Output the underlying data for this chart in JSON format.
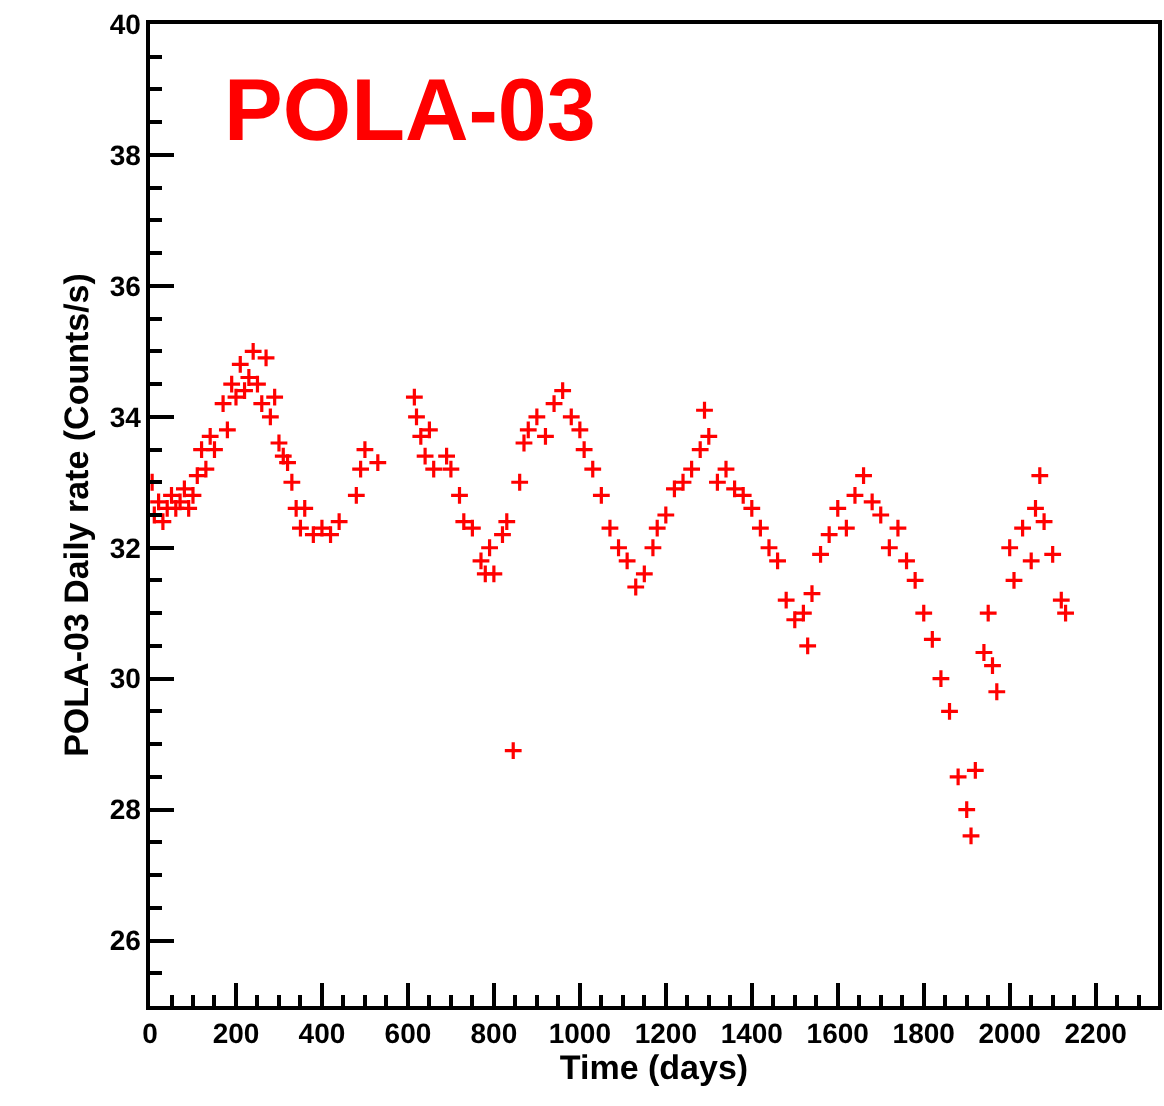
{
  "chart_data": {
    "type": "scatter",
    "xlabel": "Time (days)",
    "ylabel": "POLA-03 Daily rate (Counts/s)",
    "annotations": [
      "POLA-03"
    ],
    "marker": "cross",
    "grid": false,
    "xlim": [
      0,
      2345
    ],
    "xticks": [
      0,
      200,
      400,
      600,
      800,
      1000,
      1200,
      1400,
      1600,
      1800,
      2000,
      2200
    ],
    "ylim": [
      25,
      40
    ],
    "yticks": [
      26,
      28,
      30,
      32,
      34,
      36,
      38,
      40
    ],
    "series": [
      {
        "color": "#ff0000",
        "x": [
          5,
          10,
          20,
          30,
          40,
          50,
          60,
          70,
          80,
          90,
          100,
          110,
          120,
          130,
          140,
          150,
          170,
          180,
          190,
          200,
          210,
          220,
          230,
          240,
          250,
          260,
          270,
          280,
          290,
          300,
          310,
          320,
          330,
          340,
          350,
          360,
          380,
          400,
          420,
          440,
          480,
          490,
          500,
          530,
          615,
          620,
          630,
          640,
          650,
          660,
          690,
          700,
          720,
          730,
          750,
          770,
          780,
          790,
          800,
          820,
          830,
          845,
          860,
          870,
          880,
          900,
          920,
          940,
          960,
          980,
          1000,
          1010,
          1030,
          1050,
          1070,
          1090,
          1110,
          1130,
          1150,
          1170,
          1180,
          1200,
          1220,
          1240,
          1260,
          1280,
          1290,
          1300,
          1320,
          1340,
          1360,
          1380,
          1400,
          1420,
          1440,
          1460,
          1480,
          1500,
          1520,
          1530,
          1540,
          1560,
          1580,
          1600,
          1620,
          1640,
          1660,
          1680,
          1700,
          1720,
          1740,
          1760,
          1780,
          1800,
          1820,
          1840,
          1860,
          1880,
          1900,
          1910,
          1920,
          1940,
          1950,
          1960,
          1970,
          2000,
          2010,
          2030,
          2050,
          2060,
          2070,
          2080,
          2100,
          2120,
          2130
        ],
        "values": [
          33.0,
          32.5,
          32.7,
          32.4,
          32.6,
          32.8,
          32.6,
          32.7,
          32.9,
          32.6,
          32.8,
          33.1,
          33.5,
          33.2,
          33.7,
          33.5,
          34.2,
          33.8,
          34.5,
          34.3,
          34.8,
          34.4,
          34.6,
          35.0,
          34.5,
          34.2,
          34.9,
          34.0,
          34.3,
          33.6,
          33.4,
          33.3,
          33.0,
          32.6,
          32.3,
          32.6,
          32.2,
          32.3,
          32.2,
          32.4,
          32.8,
          33.2,
          33.5,
          33.3,
          34.3,
          34.0,
          33.7,
          33.4,
          33.8,
          33.2,
          33.4,
          33.2,
          32.8,
          32.4,
          32.3,
          31.8,
          31.6,
          32.0,
          31.6,
          32.2,
          32.4,
          28.9,
          33.0,
          33.6,
          33.8,
          34.0,
          33.7,
          34.2,
          34.4,
          34.0,
          33.8,
          33.5,
          33.2,
          32.8,
          32.3,
          32.0,
          31.8,
          31.4,
          31.6,
          32.0,
          32.3,
          32.5,
          32.9,
          33.0,
          33.2,
          33.5,
          34.1,
          33.7,
          33.0,
          33.2,
          32.9,
          32.8,
          32.6,
          32.3,
          32.0,
          31.8,
          31.2,
          30.9,
          31.0,
          30.5,
          31.3,
          31.9,
          32.2,
          32.6,
          32.3,
          32.8,
          33.1,
          32.7,
          32.5,
          32.0,
          32.3,
          31.8,
          31.5,
          31.0,
          30.6,
          30.0,
          29.5,
          28.5,
          28.0,
          27.6,
          28.6,
          30.4,
          31.0,
          30.2,
          29.8,
          32.0,
          31.5,
          32.3,
          31.8,
          32.6,
          33.1,
          32.4,
          31.9,
          31.2,
          31.0
        ]
      }
    ]
  }
}
